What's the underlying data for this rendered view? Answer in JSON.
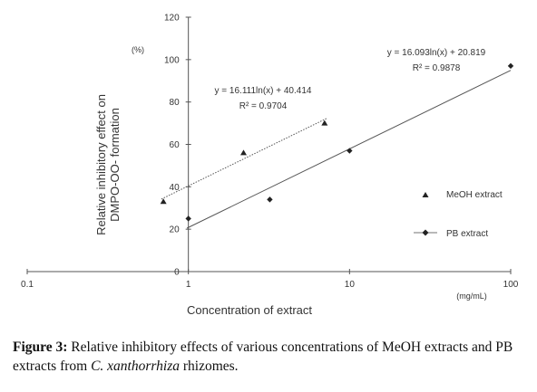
{
  "chart_data": {
    "type": "scatter",
    "x_scale": "log",
    "xlim": [
      0.1,
      100
    ],
    "ylim": [
      0,
      120
    ],
    "x_ticks": [
      "0.1",
      "1",
      "10",
      "100"
    ],
    "y_ticks": [
      "0",
      "20",
      "40",
      "60",
      "80",
      "100",
      "120"
    ],
    "xlabel": "Concentration of extract",
    "x_unit": "(mg/mL)",
    "ylabel_line1": "Relative inhibitory effect on",
    "ylabel_line2": "DMPO-OO- formation",
    "y_unit": "(%)",
    "legend_position": "right",
    "series": [
      {
        "name": "MeOH extract",
        "marker": "triangle",
        "x": [
          0.7,
          2.2,
          7.0
        ],
        "y": [
          33,
          56,
          70
        ],
        "trend_equation": "y = 16.111ln(x) + 40.414",
        "r_squared": "R² = 0.9704",
        "trend": {
          "a": 16.111,
          "b": 40.414,
          "x_range": [
            0.68,
            7.2
          ]
        },
        "line_style": "dotted"
      },
      {
        "name": "PB extract",
        "marker": "diamond",
        "x": [
          1,
          3.2,
          10,
          100
        ],
        "y": [
          25,
          34,
          57,
          97
        ],
        "trend_equation": "y = 16.093ln(x) + 20.819",
        "r_squared": "R² = 0.9878",
        "trend": {
          "a": 16.093,
          "b": 20.819,
          "x_range": [
            0.98,
            100
          ]
        },
        "line_style": "solid"
      }
    ]
  },
  "caption": {
    "label": "Figure 3:",
    "text_before": " Relative inhibitory effects of various concentrations of MeOH extracts and PB extracts from ",
    "species": "C. xanthorrhiza",
    "text_after": " rhizomes."
  }
}
